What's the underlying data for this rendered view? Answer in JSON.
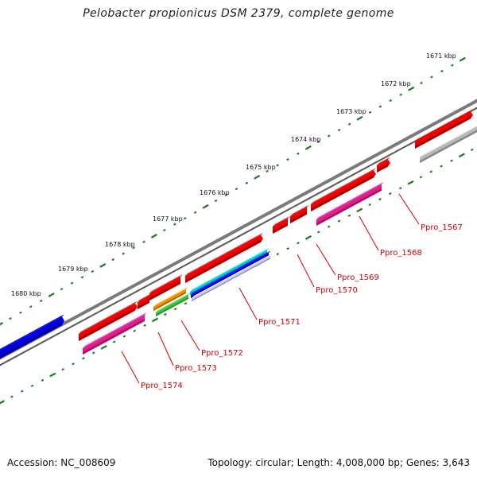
{
  "title": "Pelobacter propionicus DSM 2379, complete genome",
  "footer": {
    "accession": "Accession: NC_008609",
    "info": "Topology: circular; Length: 4,008,000 bp; Genes: 3,643"
  },
  "colors": {
    "backbone": "#7a7a7a",
    "tick": "#1a7a1a",
    "label": "#d40000",
    "red": "#ee0000",
    "magenta": "#e0208a",
    "gray": "#b8b8b8",
    "blue": "#0000e0",
    "cyan": "#00c0c8",
    "orange": "#f08a00",
    "green": "#40c040",
    "lavender": "#c8c8f0"
  },
  "kbp_labels": [
    "1671 kbp",
    "1672 kbp",
    "1673 kbp",
    "1674 kbp",
    "1675 kbp",
    "1676 kbp",
    "1677 kbp",
    "1678 kbp",
    "1679 kbp",
    "1680 kbp"
  ],
  "gene_labels": [
    "Ppro_1567",
    "Ppro_1568",
    "Ppro_1569",
    "Ppro_1570",
    "Ppro_1571",
    "Ppro_1572",
    "Ppro_1573",
    "Ppro_1574"
  ]
}
